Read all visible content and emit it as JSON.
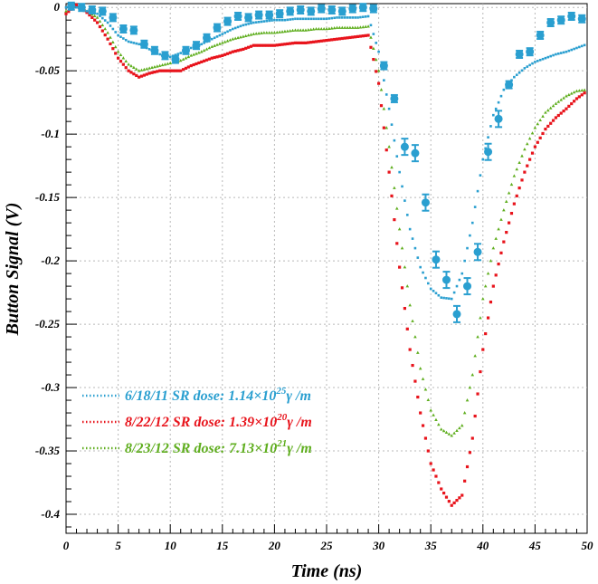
{
  "chart_data": {
    "type": "scatter",
    "xlabel": "Time (ns)",
    "ylabel": "Button Signal (V)",
    "xlim": [
      0,
      50
    ],
    "ylim": [
      -0.415,
      0.003
    ],
    "x_ticks": [
      0,
      5,
      10,
      15,
      20,
      25,
      30,
      35,
      40,
      45,
      50
    ],
    "y_ticks": [
      0,
      -0.05,
      -0.1,
      -0.15,
      -0.2,
      -0.25,
      -0.3,
      -0.35,
      -0.4
    ],
    "x_tick_labels": [
      "0",
      "5",
      "10",
      "15",
      "20",
      "25",
      "30",
      "35",
      "40",
      "45",
      "50"
    ],
    "y_tick_labels": [
      "0",
      "-0.05",
      "-0.1",
      "-0.15",
      "-0.2",
      "-0.25",
      "-0.3",
      "-0.35",
      "-0.4"
    ],
    "grid": true,
    "legend_position": "lower-left",
    "colors": {
      "blue": "#2a9fd0",
      "red": "#e8141c",
      "green": "#5fae1e"
    },
    "legend": [
      {
        "date": "6/18/11 SR dose: 1.14×10",
        "exp": "25",
        "unit": "γ /m",
        "color": "#2a9fd0"
      },
      {
        "date": "8/22/12 SR dose: 1.39×10",
        "exp": "20",
        "unit": "γ /m",
        "color": "#e8141c"
      },
      {
        "date": "8/23/12 SR dose: 7.13×10",
        "exp": "21",
        "unit": "γ /m",
        "color": "#5fae1e"
      }
    ],
    "series": [
      {
        "color": "#2a9fd0",
        "x": [
          0,
          1,
          2,
          3,
          4,
          5,
          6,
          7,
          8,
          9,
          10,
          11,
          12,
          13,
          14,
          15,
          16,
          17,
          18,
          19,
          20,
          21,
          22,
          23,
          24,
          25,
          26,
          27,
          28,
          29,
          30,
          31,
          32,
          33,
          34,
          35,
          36,
          37,
          38,
          39,
          40,
          41,
          42,
          43,
          44,
          45,
          46,
          47,
          48,
          49,
          50
        ],
        "y": [
          0.0,
          0.0,
          -0.003,
          -0.005,
          -0.012,
          -0.022,
          -0.027,
          -0.029,
          -0.033,
          -0.037,
          -0.039,
          -0.036,
          -0.032,
          -0.029,
          -0.025,
          -0.021,
          -0.017,
          -0.014,
          -0.012,
          -0.011,
          -0.01,
          -0.01,
          -0.009,
          -0.009,
          -0.009,
          -0.009,
          -0.008,
          -0.008,
          -0.008,
          -0.007,
          -0.035,
          -0.08,
          -0.13,
          -0.175,
          -0.205,
          -0.222,
          -0.229,
          -0.23,
          -0.21,
          -0.17,
          -0.12,
          -0.085,
          -0.065,
          -0.055,
          -0.048,
          -0.043,
          -0.04,
          -0.037,
          -0.035,
          -0.032,
          -0.029
        ]
      },
      {
        "color": "#2a9fd0",
        "marker": "circle-error",
        "x": [
          0.5,
          1.5,
          2.5,
          3.5,
          4.5,
          5.5,
          6.5,
          7.5,
          8.5,
          9.5,
          10.5,
          11.5,
          12.5,
          13.5,
          14.5,
          15.5,
          16.5,
          17.5,
          18.5,
          19.5,
          20.5,
          21.5,
          22.5,
          23.5,
          24.5,
          25.5,
          26.5,
          27.5,
          28.5,
          29.5,
          30.5,
          31.5,
          32.5,
          33.5,
          34.5,
          35.5,
          36.5,
          37.5,
          38.5,
          39.5,
          40.5,
          41.5,
          42.5,
          43.5,
          44.5,
          45.5,
          46.5,
          47.5,
          48.5,
          49.5
        ],
        "y": [
          0.001,
          0.0,
          -0.002,
          -0.003,
          -0.008,
          -0.017,
          -0.018,
          -0.029,
          -0.034,
          -0.038,
          -0.041,
          -0.034,
          -0.03,
          -0.024,
          -0.016,
          -0.011,
          -0.007,
          -0.008,
          -0.006,
          -0.006,
          -0.005,
          -0.003,
          -0.002,
          -0.003,
          -0.001,
          -0.002,
          -0.003,
          -0.001,
          0.0,
          -0.001,
          -0.046,
          -0.072,
          -0.11,
          -0.115,
          -0.154,
          -0.199,
          -0.215,
          -0.242,
          -0.22,
          -0.193,
          -0.114,
          -0.088,
          -0.061,
          -0.037,
          -0.035,
          -0.022,
          -0.012,
          -0.01,
          -0.007,
          -0.009
        ]
      },
      {
        "color": "#e8141c",
        "x": [
          0,
          1,
          2,
          3,
          4,
          5,
          6,
          7,
          8,
          9,
          10,
          11,
          12,
          13,
          14,
          15,
          16,
          17,
          18,
          19,
          20,
          21,
          22,
          23,
          24,
          25,
          26,
          27,
          28,
          29,
          30,
          31,
          32,
          33,
          34,
          35,
          36,
          37,
          38,
          39,
          40,
          41,
          42,
          43,
          44,
          45,
          46,
          47,
          48,
          49,
          50
        ],
        "y": [
          -0.005,
          0.002,
          -0.004,
          -0.012,
          -0.025,
          -0.04,
          -0.05,
          -0.055,
          -0.052,
          -0.05,
          -0.05,
          -0.05,
          -0.046,
          -0.043,
          -0.04,
          -0.038,
          -0.035,
          -0.033,
          -0.03,
          -0.03,
          -0.03,
          -0.029,
          -0.028,
          -0.028,
          -0.027,
          -0.026,
          -0.025,
          -0.024,
          -0.023,
          -0.022,
          -0.06,
          -0.13,
          -0.205,
          -0.27,
          -0.32,
          -0.36,
          -0.38,
          -0.393,
          -0.385,
          -0.34,
          -0.27,
          -0.22,
          -0.185,
          -0.155,
          -0.13,
          -0.11,
          -0.096,
          -0.087,
          -0.08,
          -0.072,
          -0.066
        ]
      },
      {
        "color": "#5fae1e",
        "x": [
          0,
          1,
          2,
          3,
          4,
          5,
          6,
          7,
          8,
          9,
          10,
          11,
          12,
          13,
          14,
          15,
          16,
          17,
          18,
          19,
          20,
          21,
          22,
          23,
          24,
          25,
          26,
          27,
          28,
          29,
          30,
          31,
          32,
          33,
          34,
          35,
          36,
          37,
          38,
          39,
          40,
          41,
          42,
          43,
          44,
          45,
          46,
          47,
          48,
          49,
          50
        ],
        "y": [
          -0.003,
          0.001,
          -0.003,
          -0.008,
          -0.02,
          -0.035,
          -0.045,
          -0.05,
          -0.048,
          -0.046,
          -0.044,
          -0.042,
          -0.038,
          -0.035,
          -0.031,
          -0.028,
          -0.025,
          -0.023,
          -0.021,
          -0.02,
          -0.02,
          -0.019,
          -0.018,
          -0.018,
          -0.017,
          -0.017,
          -0.016,
          -0.016,
          -0.016,
          -0.015,
          -0.05,
          -0.11,
          -0.175,
          -0.235,
          -0.285,
          -0.318,
          -0.333,
          -0.338,
          -0.33,
          -0.29,
          -0.23,
          -0.19,
          -0.16,
          -0.133,
          -0.112,
          -0.095,
          -0.083,
          -0.076,
          -0.07,
          -0.066,
          -0.065
        ]
      }
    ]
  }
}
